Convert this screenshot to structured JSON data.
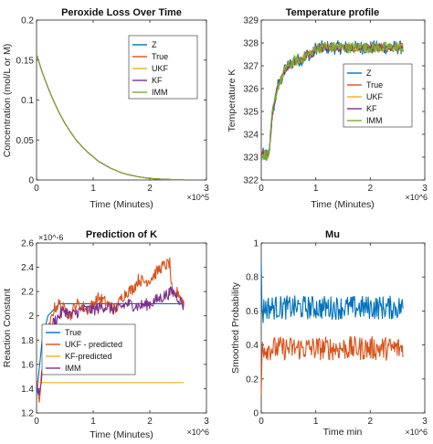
{
  "chart_data": [
    {
      "type": "line",
      "title": "Peroxide Loss Over Time",
      "xlabel": "Time (Minutes)",
      "ylabel": "Concentration (mol/L or M)",
      "x_exponent": "×10^5",
      "xlim": [
        0,
        3
      ],
      "ylim": [
        0,
        0.2
      ],
      "xticks": [
        "0",
        "1",
        "2",
        "3"
      ],
      "yticks": [
        "0",
        "0.05",
        "0.1",
        "0.15",
        "0.2"
      ],
      "legend": {
        "position": "right",
        "entries": [
          "Z",
          "True",
          "UKF",
          "KF",
          "IMM"
        ]
      },
      "series": [
        {
          "name": "Z",
          "color": "#0072BD",
          "x": [
            0,
            0.1,
            0.2,
            0.3,
            0.4,
            0.5,
            0.6,
            0.7,
            0.8,
            0.9,
            1.0,
            1.1,
            1.2,
            1.3,
            1.4,
            1.5,
            1.6,
            1.8,
            2.0,
            2.2,
            2.4,
            2.6
          ],
          "y": [
            0.157,
            0.135,
            0.116,
            0.099,
            0.084,
            0.071,
            0.06,
            0.05,
            0.042,
            0.035,
            0.029,
            0.023,
            0.019,
            0.015,
            0.012,
            0.009,
            0.007,
            0.004,
            0.002,
            0.001,
            0.0005,
            0.0003
          ]
        },
        {
          "name": "True",
          "color": "#D95319",
          "x": [
            0,
            0.1,
            0.2,
            0.3,
            0.4,
            0.5,
            0.6,
            0.7,
            0.8,
            0.9,
            1.0,
            1.1,
            1.2,
            1.3,
            1.4,
            1.5,
            1.6,
            1.8,
            2.0,
            2.2,
            2.4,
            2.6
          ],
          "y": [
            0.157,
            0.135,
            0.116,
            0.099,
            0.084,
            0.071,
            0.06,
            0.05,
            0.042,
            0.035,
            0.029,
            0.023,
            0.019,
            0.015,
            0.012,
            0.009,
            0.007,
            0.004,
            0.002,
            0.001,
            0.0005,
            0.0003
          ]
        },
        {
          "name": "UKF",
          "color": "#EDB120",
          "x": [
            0,
            0.1,
            0.2,
            0.3,
            0.4,
            0.5,
            0.6,
            0.7,
            0.8,
            0.9,
            1.0,
            1.1,
            1.2,
            1.3,
            1.4,
            1.5,
            1.6,
            1.8,
            2.0,
            2.2,
            2.4,
            2.6
          ],
          "y": [
            0.157,
            0.135,
            0.116,
            0.099,
            0.084,
            0.071,
            0.06,
            0.05,
            0.042,
            0.035,
            0.029,
            0.023,
            0.019,
            0.015,
            0.012,
            0.009,
            0.007,
            0.004,
            0.002,
            0.001,
            0.0005,
            0.0003
          ]
        },
        {
          "name": "KF",
          "color": "#7E2F8E",
          "x": [
            0,
            0.1,
            0.2,
            0.3,
            0.4,
            0.5,
            0.6,
            0.7,
            0.8,
            0.9,
            1.0,
            1.1,
            1.2,
            1.3,
            1.4,
            1.5,
            1.6,
            1.8,
            2.0,
            2.2,
            2.4,
            2.6
          ],
          "y": [
            0.157,
            0.135,
            0.116,
            0.099,
            0.084,
            0.071,
            0.06,
            0.05,
            0.042,
            0.035,
            0.029,
            0.023,
            0.019,
            0.015,
            0.012,
            0.009,
            0.007,
            0.004,
            0.002,
            0.001,
            0.0005,
            0.0003
          ]
        },
        {
          "name": "IMM",
          "color": "#77AC30",
          "x": [
            0,
            0.1,
            0.2,
            0.3,
            0.4,
            0.5,
            0.6,
            0.7,
            0.8,
            0.9,
            1.0,
            1.1,
            1.2,
            1.3,
            1.4,
            1.5,
            1.6,
            1.8,
            2.0,
            2.2,
            2.4,
            2.6
          ],
          "y": [
            0.157,
            0.135,
            0.116,
            0.099,
            0.084,
            0.071,
            0.06,
            0.05,
            0.042,
            0.035,
            0.029,
            0.023,
            0.019,
            0.015,
            0.012,
            0.009,
            0.007,
            0.004,
            0.002,
            0.001,
            0.0005,
            0.0003
          ]
        }
      ]
    },
    {
      "type": "line",
      "title": "Temperature profile",
      "xlabel": "Time (Minutes)",
      "ylabel": "Temperature K",
      "x_exponent": "×10^6",
      "xlim": [
        0,
        3
      ],
      "ylim": [
        322,
        329
      ],
      "xticks": [
        "0",
        "1",
        "2",
        "3"
      ],
      "yticks": [
        "322",
        "323",
        "324",
        "325",
        "326",
        "327",
        "328",
        "329"
      ],
      "legend": {
        "position": "right",
        "entries": [
          "Z",
          "True",
          "UKF",
          "KF",
          "IMM"
        ]
      },
      "series": [
        {
          "name": "Z",
          "color": "#0072BD",
          "x": [
            0,
            0.14,
            0.15,
            0.2,
            0.3,
            0.35,
            0.45,
            0.5,
            0.6,
            0.75,
            0.85,
            0.95,
            1.0,
            1.2,
            1.5,
            2.0,
            2.6
          ],
          "y": [
            323.1,
            323.1,
            323.4,
            324.8,
            326.1,
            326.3,
            326.9,
            327.0,
            327.2,
            327.3,
            327.5,
            327.5,
            327.8,
            327.8,
            327.8,
            327.8,
            327.8
          ],
          "noise": 0.3
        },
        {
          "name": "True",
          "color": "#D95319",
          "x": [
            0,
            0.14,
            0.15,
            0.2,
            0.3,
            0.35,
            0.45,
            0.5,
            0.6,
            0.75,
            0.85,
            0.95,
            1.0,
            1.2,
            1.5,
            2.0,
            2.6
          ],
          "y": [
            323.1,
            323.1,
            323.4,
            324.8,
            326.1,
            326.3,
            326.9,
            327.0,
            327.2,
            327.3,
            327.5,
            327.5,
            327.8,
            327.8,
            327.8,
            327.8,
            327.8
          ],
          "noise": 0.2
        },
        {
          "name": "UKF",
          "color": "#EDB120",
          "x": [
            0,
            0.14,
            0.15,
            0.2,
            0.3,
            0.35,
            0.45,
            0.5,
            0.6,
            0.75,
            0.85,
            0.95,
            1.0,
            1.2,
            1.5,
            2.0,
            2.6
          ],
          "y": [
            323.1,
            323.1,
            323.4,
            324.8,
            326.1,
            326.3,
            326.9,
            327.0,
            327.2,
            327.3,
            327.5,
            327.5,
            327.8,
            327.8,
            327.8,
            327.8,
            327.8
          ],
          "noise": 0.15
        },
        {
          "name": "KF",
          "color": "#7E2F8E",
          "x": [
            0,
            0.14,
            0.15,
            0.2,
            0.3,
            0.35,
            0.45,
            0.5,
            0.6,
            0.75,
            0.85,
            0.95,
            1.0,
            1.2,
            1.5,
            2.0,
            2.6
          ],
          "y": [
            323.1,
            323.1,
            323.4,
            324.8,
            326.1,
            326.3,
            326.9,
            327.0,
            327.2,
            327.3,
            327.5,
            327.5,
            327.8,
            327.8,
            327.8,
            327.8,
            327.8
          ],
          "noise": 0.15
        },
        {
          "name": "IMM",
          "color": "#77AC30",
          "x": [
            0,
            0.14,
            0.15,
            0.2,
            0.3,
            0.35,
            0.45,
            0.5,
            0.6,
            0.75,
            0.85,
            0.95,
            1.0,
            1.2,
            1.5,
            2.0,
            2.6
          ],
          "y": [
            323.1,
            323.1,
            323.4,
            324.8,
            326.1,
            326.3,
            326.9,
            327.0,
            327.2,
            327.3,
            327.5,
            327.5,
            327.8,
            327.8,
            327.8,
            327.8,
            327.8
          ],
          "noise": 0.25
        }
      ]
    },
    {
      "type": "line",
      "title": "Prediction of K",
      "xlabel": "Time (Minutes)",
      "ylabel": "Reaction Constant",
      "x_exponent": "×10^6",
      "y_exponent": "×10^-6",
      "xlim": [
        0,
        3
      ],
      "ylim": [
        1.2,
        2.6
      ],
      "xticks": [
        "0",
        "1",
        "2",
        "3"
      ],
      "yticks": [
        "1.2",
        "1.4",
        "1.6",
        "1.8",
        "2",
        "2.2",
        "2.4",
        "2.6"
      ],
      "legend": {
        "position": "left",
        "entries": [
          "True",
          "UKF - predicted",
          "KF-predicted",
          "IMM"
        ]
      },
      "series": [
        {
          "name": "True",
          "color": "#0072BD",
          "x": [
            0,
            0.1,
            0.2,
            0.4,
            0.6,
            1.0,
            1.5,
            2.0,
            2.6
          ],
          "y": [
            1.35,
            1.8,
            2.0,
            2.1,
            2.1,
            2.1,
            2.1,
            2.1,
            2.1
          ]
        },
        {
          "name": "UKF - predicted",
          "color": "#D95319",
          "x": [
            0,
            0.05,
            0.1,
            0.2,
            0.3,
            0.4,
            0.5,
            0.6,
            0.7,
            0.8,
            0.9,
            1.0,
            1.1,
            1.2,
            1.3,
            1.4,
            1.5,
            1.6,
            1.7,
            1.8,
            1.9,
            2.0,
            2.1,
            2.2,
            2.3,
            2.35,
            2.4,
            2.5,
            2.6
          ],
          "y": [
            1.45,
            1.3,
            1.55,
            1.85,
            2.05,
            2.1,
            2.05,
            2.0,
            2.1,
            2.08,
            2.05,
            2.1,
            2.15,
            2.12,
            2.08,
            2.05,
            2.15,
            2.2,
            2.22,
            2.3,
            2.28,
            2.3,
            2.35,
            2.4,
            2.42,
            2.44,
            2.15,
            2.2,
            2.1
          ],
          "noise": 0.05
        },
        {
          "name": "KF-predicted",
          "color": "#EDB120",
          "x": [
            0,
            2.6
          ],
          "y": [
            1.45,
            1.45
          ]
        },
        {
          "name": "IMM",
          "color": "#7E2F8E",
          "x": [
            0,
            0.05,
            0.1,
            0.2,
            0.3,
            0.4,
            0.5,
            0.6,
            0.8,
            1.0,
            1.2,
            1.4,
            1.6,
            1.8,
            2.0,
            2.2,
            2.4,
            2.5,
            2.6
          ],
          "y": [
            1.45,
            1.35,
            1.55,
            1.75,
            1.95,
            2.0,
            2.05,
            2.0,
            2.05,
            2.05,
            2.08,
            2.05,
            2.1,
            2.08,
            2.1,
            2.15,
            2.2,
            2.15,
            2.08
          ],
          "noise": 0.05
        }
      ]
    },
    {
      "type": "line",
      "title": "Mu",
      "xlabel": "Time min",
      "ylabel": "Smoothed Probability",
      "x_exponent": "×10^6",
      "xlim": [
        0,
        3
      ],
      "ylim": [
        0,
        1
      ],
      "xticks": [
        "0",
        "1",
        "2",
        "3"
      ],
      "yticks": [
        "0",
        "0.2",
        "0.4",
        "0.6",
        "0.8",
        "1"
      ],
      "legend": null,
      "series": [
        {
          "color": "#0072BD",
          "x": [
            0,
            0.02,
            0.05,
            2.6
          ],
          "y": [
            0.9,
            0.55,
            0.62,
            0.62
          ],
          "noise": 0.07
        },
        {
          "color": "#D95319",
          "x": [
            0,
            0.02,
            0.05,
            2.6
          ],
          "y": [
            0.1,
            0.45,
            0.38,
            0.38
          ],
          "noise": 0.07
        }
      ]
    }
  ]
}
